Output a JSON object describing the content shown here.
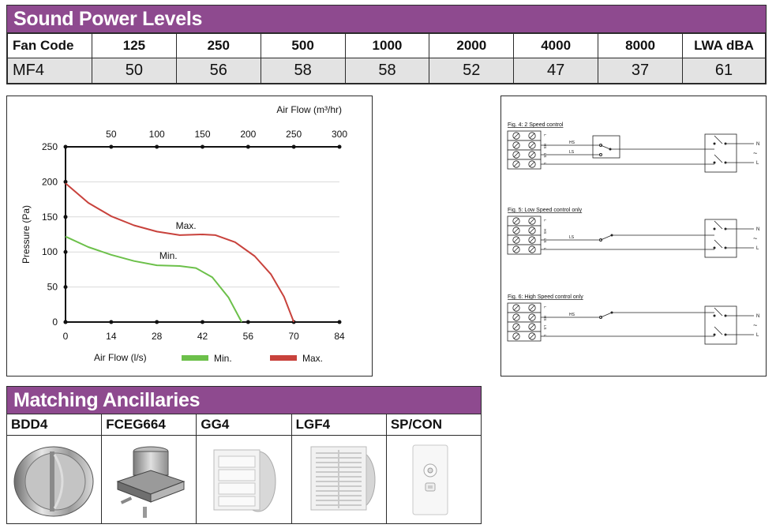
{
  "sound_power": {
    "title": "Sound Power Levels",
    "headers": [
      "Fan Code",
      "125",
      "250",
      "500",
      "1000",
      "2000",
      "4000",
      "8000",
      "LWA dBA"
    ],
    "row": [
      "MF4",
      "50",
      "56",
      "58",
      "58",
      "52",
      "47",
      "37",
      "61"
    ]
  },
  "chart_data": {
    "type": "line",
    "xlabel": "Air Flow (l/s)",
    "x2label": "Air Flow (m³/hr)",
    "ylabel": "Pressure (Pa)",
    "xlim": [
      0,
      84
    ],
    "x_ticks": [
      "0",
      "14",
      "28",
      "42",
      "56",
      "70",
      "84"
    ],
    "x2lim": [
      0,
      300
    ],
    "x2_ticks": [
      "50",
      "100",
      "150",
      "200",
      "250",
      "300"
    ],
    "ylim": [
      0,
      250
    ],
    "y_ticks": [
      "0",
      "50",
      "100",
      "150",
      "200",
      "250"
    ],
    "grid": true,
    "legend": "bottom",
    "series": [
      {
        "name": "Min.",
        "color": "#6cc04a",
        "x": [
          0,
          7,
          14,
          21,
          28,
          35,
          40,
          45,
          50,
          54
        ],
        "y": [
          122,
          107,
          96,
          87,
          81,
          80,
          77,
          64,
          35,
          0
        ]
      },
      {
        "name": "Max.",
        "color": "#c8423c",
        "x": [
          0,
          7,
          14,
          21,
          28,
          35,
          42,
          46,
          52,
          58,
          63,
          67,
          70
        ],
        "y": [
          198,
          170,
          151,
          138,
          129,
          124,
          125,
          124,
          114,
          94,
          68,
          36,
          0
        ]
      }
    ],
    "annotations": [
      {
        "text": "Max.",
        "x": 35,
        "y": 124
      },
      {
        "text": "Min.",
        "x": 30,
        "y": 81
      }
    ]
  },
  "wiring": {
    "figures": [
      {
        "title": "Fig. 4: 2 Speed control",
        "wires": [
          "HS",
          "LS"
        ]
      },
      {
        "title": "Fig. 5: Low Speed control only",
        "wires": [
          "LS"
        ]
      },
      {
        "title": "Fig. 6: High Speed control only",
        "wires": [
          "HS"
        ]
      }
    ],
    "terminal_labels": [
      "L",
      "HS",
      "LS",
      "L"
    ],
    "right_labels": [
      "N",
      "~",
      "L"
    ]
  },
  "ancillaries": {
    "title": "Matching Ancillaries",
    "items": [
      {
        "code": "BDD4",
        "icon": "backdraft-damper-image"
      },
      {
        "code": "FCEG664",
        "icon": "ceiling-box-image"
      },
      {
        "code": "GG4",
        "icon": "gravity-grille-image"
      },
      {
        "code": "LGF4",
        "icon": "louvre-grille-image"
      },
      {
        "code": "SP/CON",
        "icon": "speed-controller-image"
      }
    ]
  }
}
